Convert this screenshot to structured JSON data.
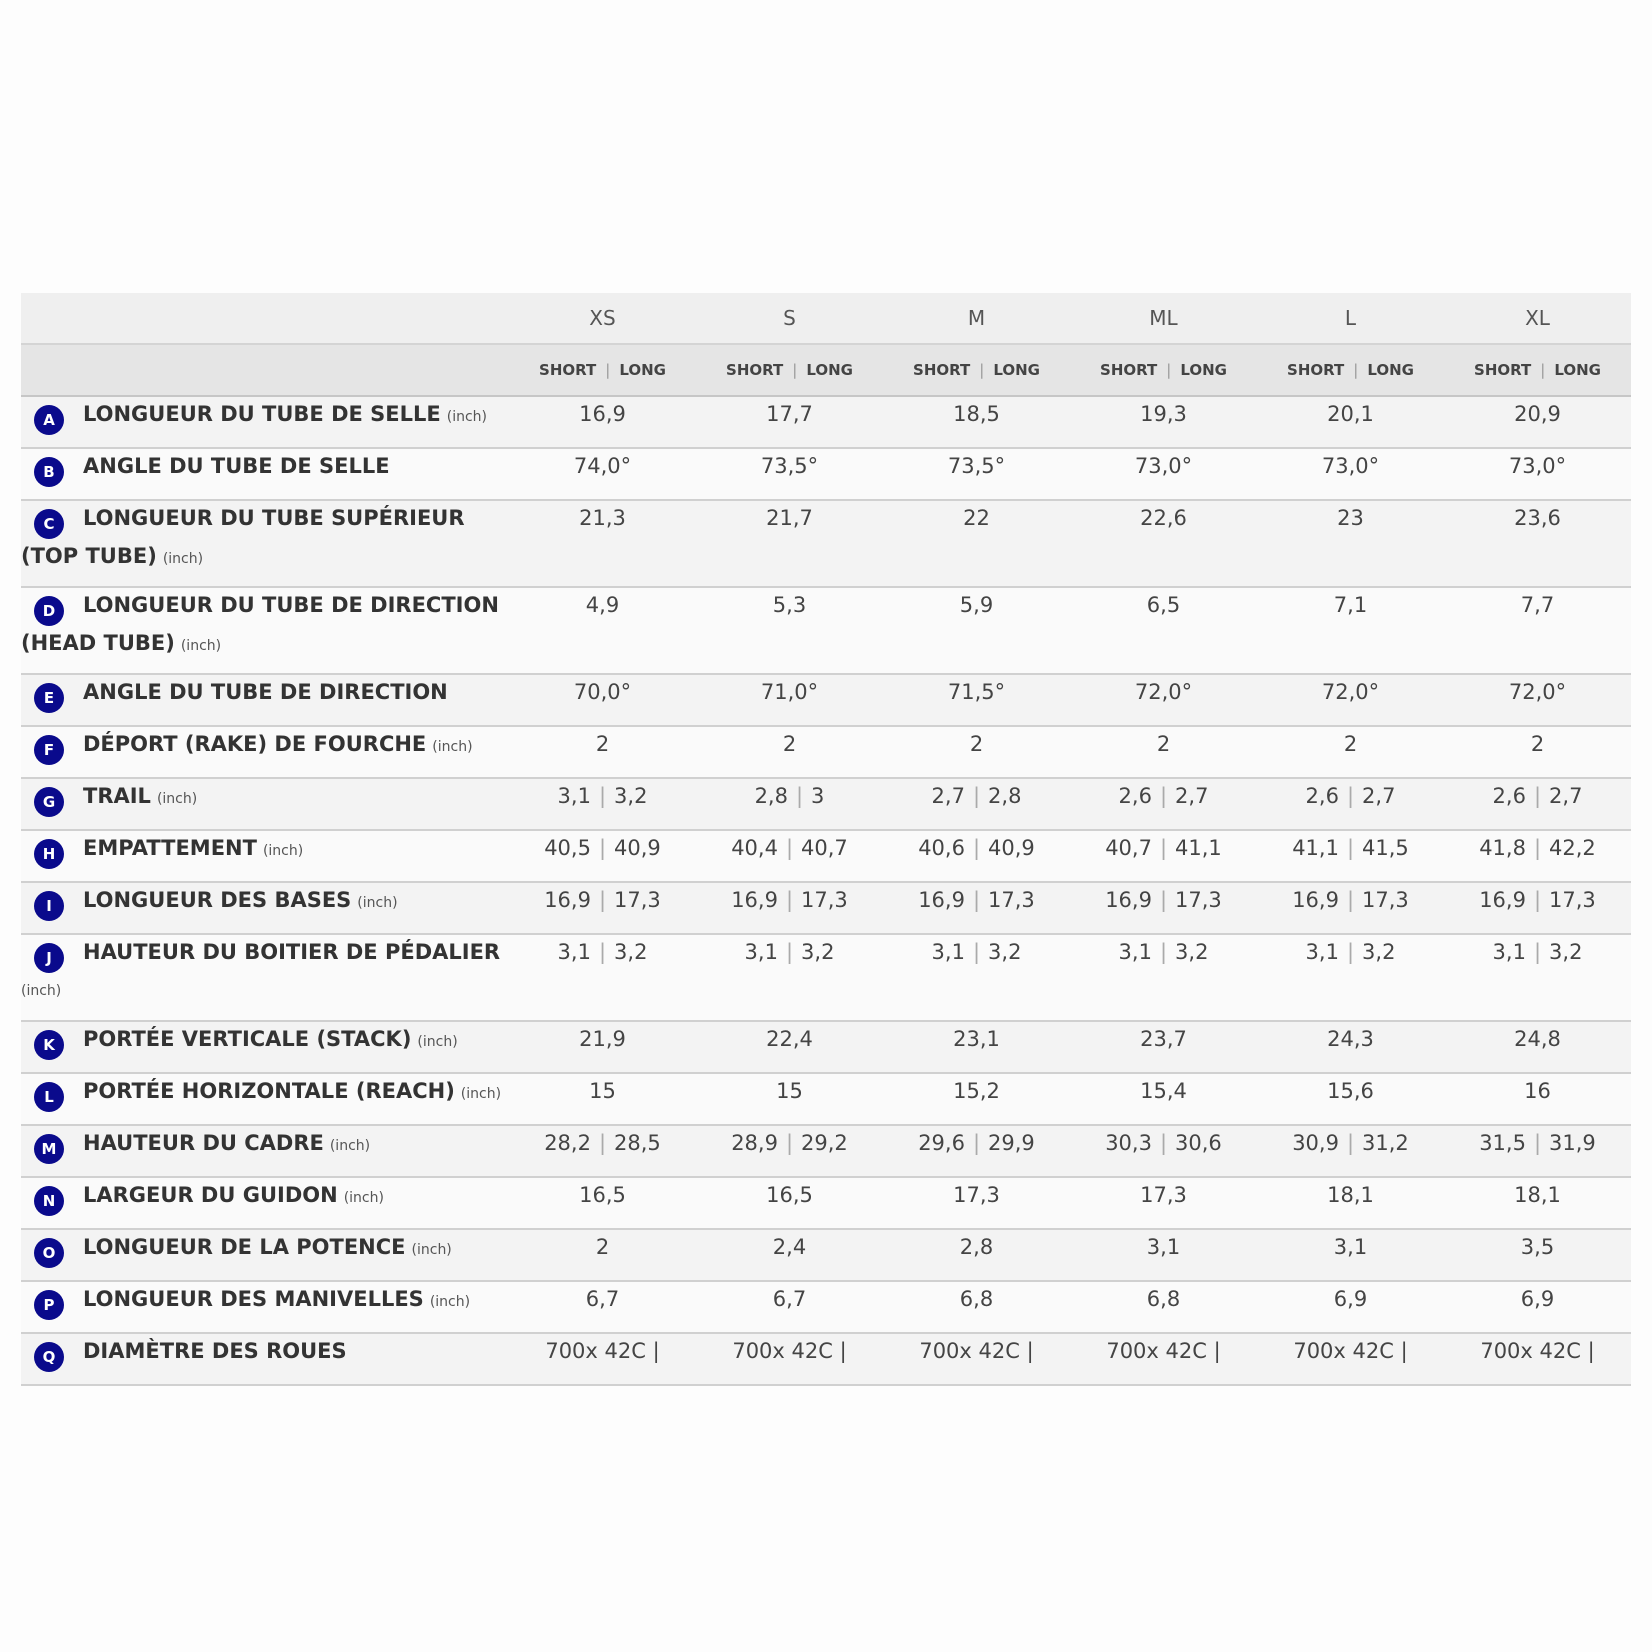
{
  "table": {
    "sizes": [
      "XS",
      "S",
      "M",
      "ML",
      "L",
      "XL"
    ],
    "sub_labels": {
      "short": "SHORT",
      "long": "LONG",
      "separator": "|"
    },
    "unit_label": "(inch)",
    "rows": [
      {
        "letter": "A",
        "label": "LONGUEUR DU TUBE DE SELLE",
        "unit": "(inch)",
        "values": [
          "16,9",
          "17,7",
          "18,5",
          "19,3",
          "20,1",
          "20,9"
        ]
      },
      {
        "letter": "B",
        "label": "ANGLE DU TUBE DE SELLE",
        "unit": "",
        "values": [
          "74,0°",
          "73,5°",
          "73,5°",
          "73,0°",
          "73,0°",
          "73,0°"
        ]
      },
      {
        "letter": "C",
        "label": "LONGUEUR DU TUBE SUPÉRIEUR (TOP TUBE)",
        "unit": "(inch)",
        "values": [
          "21,3",
          "21,7",
          "22",
          "22,6",
          "23",
          "23,6"
        ]
      },
      {
        "letter": "D",
        "label": "LONGUEUR DU TUBE DE DIRECTION (HEAD TUBE)",
        "unit": "(inch)",
        "values": [
          "4,9",
          "5,3",
          "5,9",
          "6,5",
          "7,1",
          "7,7"
        ]
      },
      {
        "letter": "E",
        "label": "ANGLE DU TUBE DE DIRECTION",
        "unit": "",
        "values": [
          "70,0°",
          "71,0°",
          "71,5°",
          "72,0°",
          "72,0°",
          "72,0°"
        ]
      },
      {
        "letter": "F",
        "label": "DÉPORT (RAKE) DE FOURCHE",
        "unit": "(inch)",
        "values": [
          "2",
          "2",
          "2",
          "2",
          "2",
          "2"
        ]
      },
      {
        "letter": "G",
        "label": "TRAIL",
        "unit": "(inch)",
        "pairs": [
          [
            "3,1",
            "3,2"
          ],
          [
            "2,8",
            "3"
          ],
          [
            "2,7",
            "2,8"
          ],
          [
            "2,6",
            "2,7"
          ],
          [
            "2,6",
            "2,7"
          ],
          [
            "2,6",
            "2,7"
          ]
        ]
      },
      {
        "letter": "H",
        "label": "EMPATTEMENT",
        "unit": "(inch)",
        "pairs": [
          [
            "40,5",
            "40,9"
          ],
          [
            "40,4",
            "40,7"
          ],
          [
            "40,6",
            "40,9"
          ],
          [
            "40,7",
            "41,1"
          ],
          [
            "41,1",
            "41,5"
          ],
          [
            "41,8",
            "42,2"
          ]
        ]
      },
      {
        "letter": "I",
        "label": "LONGUEUR DES BASES",
        "unit": "(inch)",
        "pairs": [
          [
            "16,9",
            "17,3"
          ],
          [
            "16,9",
            "17,3"
          ],
          [
            "16,9",
            "17,3"
          ],
          [
            "16,9",
            "17,3"
          ],
          [
            "16,9",
            "17,3"
          ],
          [
            "16,9",
            "17,3"
          ]
        ]
      },
      {
        "letter": "J",
        "label": "HAUTEUR DU BOITIER DE PÉDALIER",
        "unit": "(inch)",
        "pairs": [
          [
            "3,1",
            "3,2"
          ],
          [
            "3,1",
            "3,2"
          ],
          [
            "3,1",
            "3,2"
          ],
          [
            "3,1",
            "3,2"
          ],
          [
            "3,1",
            "3,2"
          ],
          [
            "3,1",
            "3,2"
          ]
        ]
      },
      {
        "letter": "K",
        "label": "PORTÉE VERTICALE (STACK)",
        "unit": "(inch)",
        "values": [
          "21,9",
          "22,4",
          "23,1",
          "23,7",
          "24,3",
          "24,8"
        ]
      },
      {
        "letter": "L",
        "label": "PORTÉE HORIZONTALE (REACH)",
        "unit": "(inch)",
        "values": [
          "15",
          "15",
          "15,2",
          "15,4",
          "15,6",
          "16"
        ]
      },
      {
        "letter": "M",
        "label": "HAUTEUR DU CADRE",
        "unit": "(inch)",
        "pairs": [
          [
            "28,2",
            "28,5"
          ],
          [
            "28,9",
            "29,2"
          ],
          [
            "29,6",
            "29,9"
          ],
          [
            "30,3",
            "30,6"
          ],
          [
            "30,9",
            "31,2"
          ],
          [
            "31,5",
            "31,9"
          ]
        ]
      },
      {
        "letter": "N",
        "label": "LARGEUR DU GUIDON",
        "unit": "(inch)",
        "values": [
          "16,5",
          "16,5",
          "17,3",
          "17,3",
          "18,1",
          "18,1"
        ]
      },
      {
        "letter": "O",
        "label": "LONGUEUR DE LA POTENCE",
        "unit": "(inch)",
        "values": [
          "2",
          "2,4",
          "2,8",
          "3,1",
          "3,1",
          "3,5"
        ]
      },
      {
        "letter": "P",
        "label": "LONGUEUR DES MANIVELLES",
        "unit": "(inch)",
        "values": [
          "6,7",
          "6,7",
          "6,8",
          "6,8",
          "6,9",
          "6,9"
        ]
      },
      {
        "letter": "Q",
        "label": "DIAMÈTRE DES ROUES",
        "unit": "",
        "values": [
          "700x 42C |",
          "700x 42C |",
          "700x 42C |",
          "700x 42C |",
          "700x 42C |",
          "700x 42C |"
        ]
      }
    ]
  },
  "colors": {
    "badge": "#0a0a8c",
    "header_bg": "#efefef",
    "subheader_bg": "#e5e5e5",
    "row_odd": "#f3f3f3",
    "row_even": "#fafafa",
    "divider": "#d0d0d0"
  }
}
